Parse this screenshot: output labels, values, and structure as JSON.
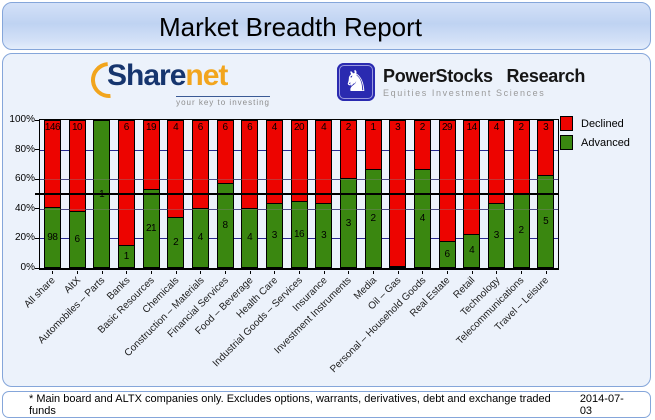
{
  "title": "Market Breadth Report",
  "logos": {
    "sharenet": {
      "wordmark_share": "Share",
      "wordmark_net": "net",
      "tagline": "your key to investing",
      "brand_navy": "#16356e",
      "brand_orange": "#f2a51d"
    },
    "powerstocks": {
      "name": "PowerStocks Research",
      "subtitle": "Equities Investment Sciences",
      "icon": "white-knight-chess-icon",
      "brand_blue": "#2a2ab0"
    }
  },
  "footer": {
    "note": "* Main board and ALTX companies only. Excludes options, warrants, derivatives, debt and exchange traded funds",
    "date": "2014-07-03"
  },
  "chart_data": {
    "type": "bar",
    "stacked": true,
    "normalized": "percent",
    "categories": [
      "All share",
      "AltX",
      "Automobiles – Parts",
      "Banks",
      "Basic Resources",
      "Chemicals",
      "Construction – Materials",
      "Financial Services",
      "Food – Beverage",
      "Health Care",
      "Industrial Goods – Services",
      "Insurance",
      "Investment Instruments",
      "Media",
      "Oil – Gas",
      "Personal – Household Goods",
      "Real Estate",
      "Retail",
      "Technology",
      "Telecommunications",
      "Travel – Leisure"
    ],
    "series": [
      {
        "name": "Declined",
        "color": "#ed0400",
        "values": [
          146,
          10,
          0,
          6,
          19,
          4,
          6,
          6,
          6,
          4,
          20,
          4,
          2,
          1,
          3,
          2,
          29,
          14,
          4,
          2,
          3
        ]
      },
      {
        "name": "Advanced",
        "color": "#3a8710",
        "values": [
          98,
          6,
          1,
          1,
          21,
          2,
          4,
          8,
          4,
          3,
          16,
          3,
          3,
          2,
          0,
          4,
          6,
          4,
          3,
          2,
          5
        ]
      }
    ],
    "value_labels": "segment counts shown inside bars",
    "xlabel": "",
    "ylabel": "",
    "yticks": [
      "0%",
      "20%",
      "40%",
      "60%",
      "80%",
      "100%"
    ],
    "ylim": [
      0,
      100
    ],
    "grid": true,
    "gridline_color": "#2a2a8f",
    "reference_line": {
      "value": 50,
      "color": "#000000"
    },
    "legend_position": "top-right"
  }
}
